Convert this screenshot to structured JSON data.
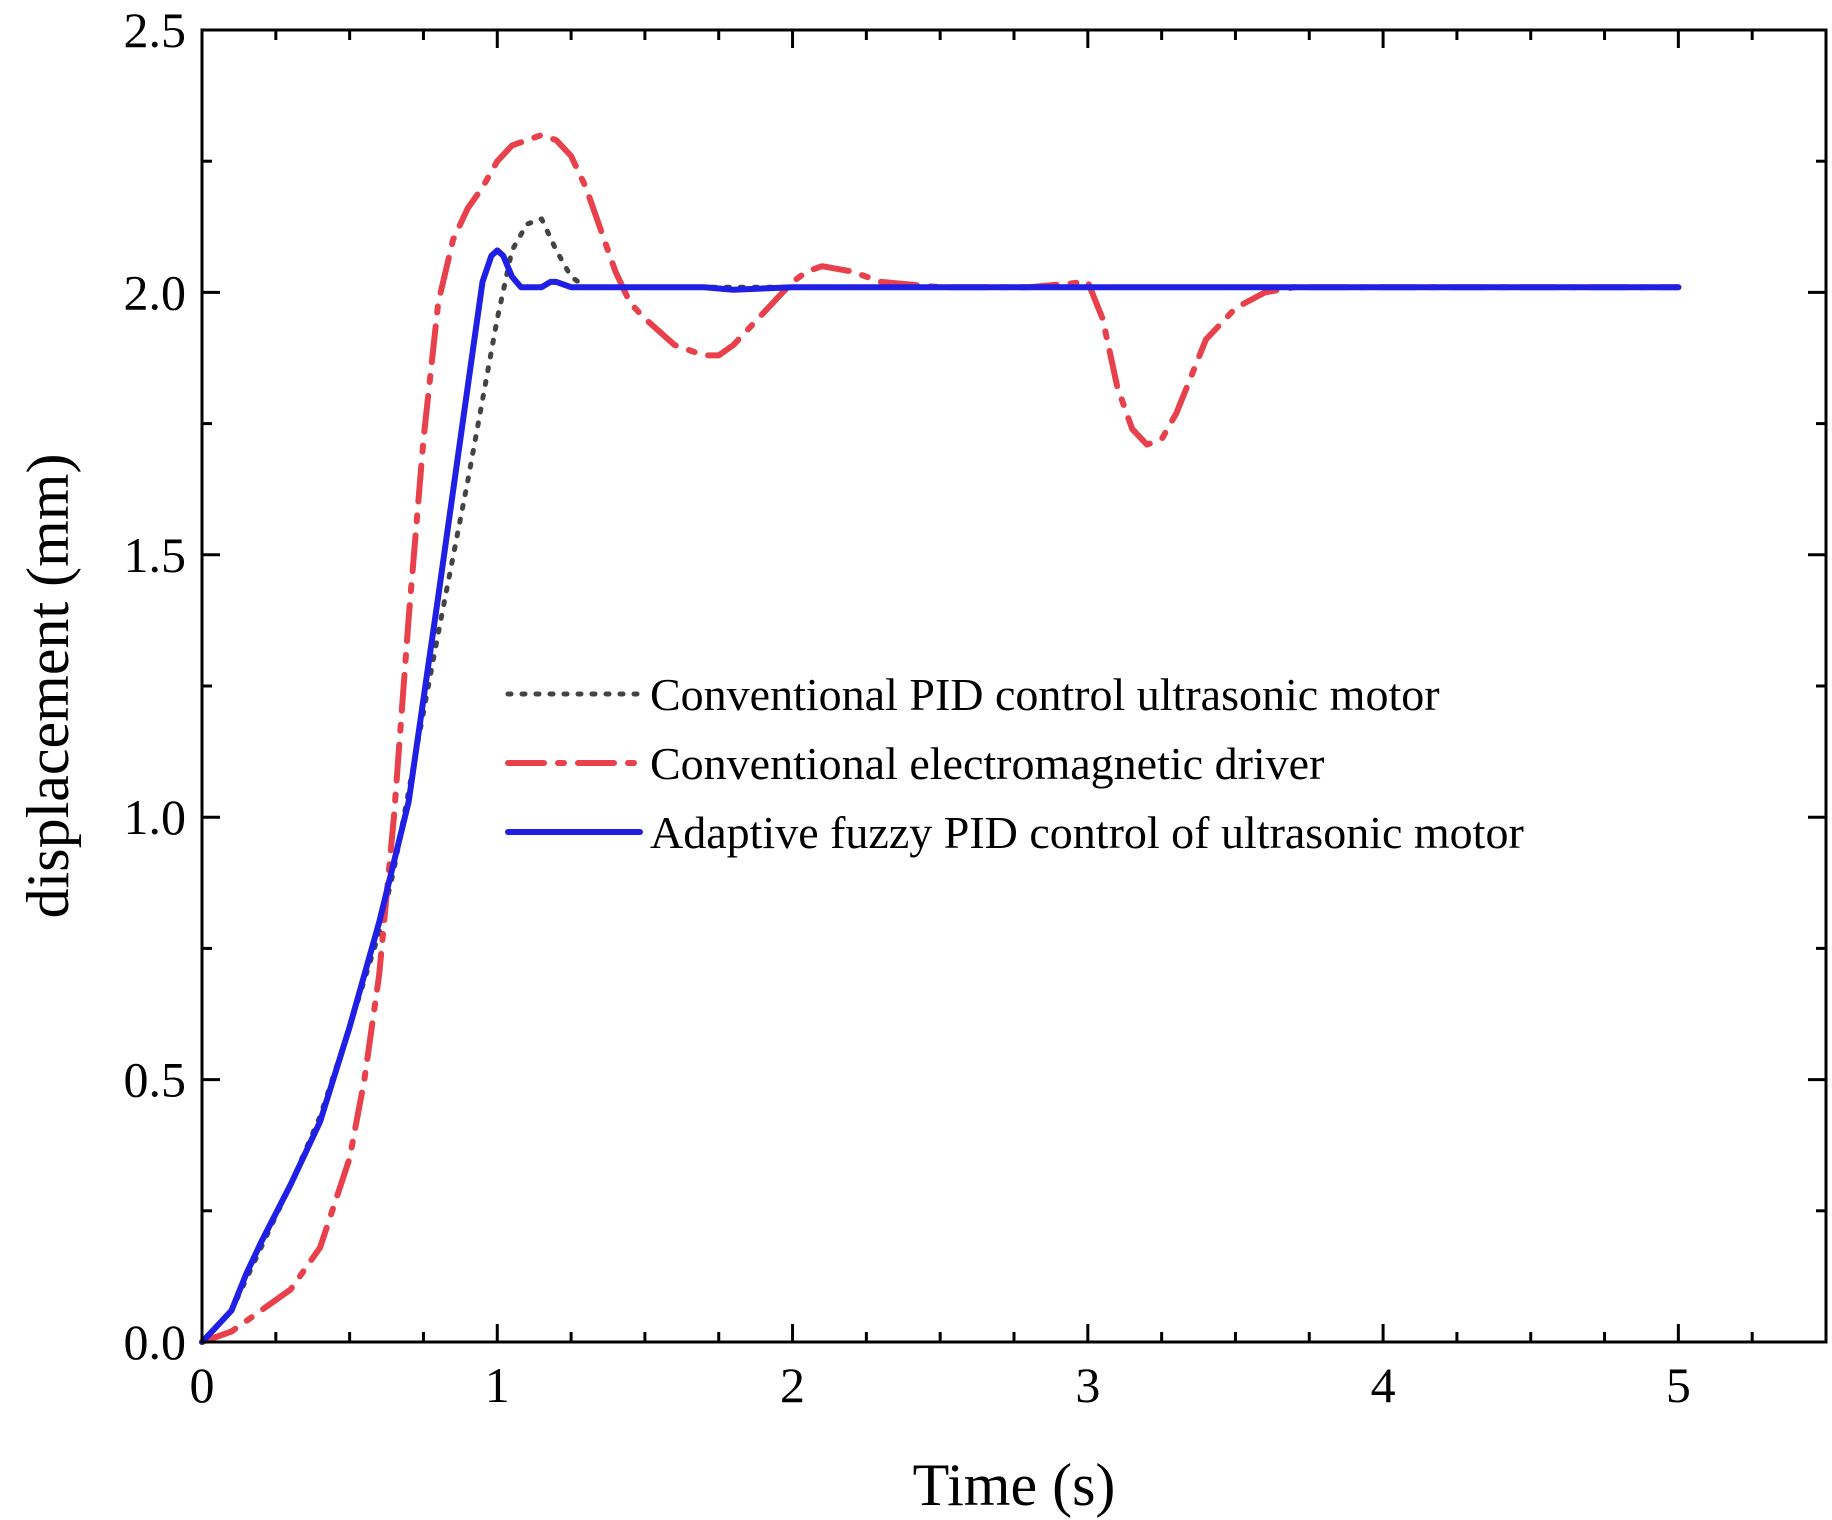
{
  "chart_data": {
    "type": "line",
    "xlabel": "Time (s)",
    "ylabel": "displacement (mm)",
    "xlim": [
      0,
      5.5
    ],
    "ylim": [
      0,
      2.5
    ],
    "xticks": [
      0,
      1,
      2,
      3,
      4,
      5
    ],
    "xtick_labels": [
      "0",
      "1",
      "2",
      "3",
      "4",
      "5"
    ],
    "yticks": [
      0,
      0.5,
      1.0,
      1.5,
      2.0,
      2.5
    ],
    "ytick_labels": [
      "0.0",
      "0.5",
      "1.0",
      "1.5",
      "2.0",
      "2.5"
    ],
    "grid": false,
    "legend_position": "center-right",
    "series": [
      {
        "name": "Conventional PID control ultrasonic motor",
        "color": "#444444",
        "style": "dotted",
        "x": [
          0,
          0.1,
          0.2,
          0.3,
          0.4,
          0.5,
          0.6,
          0.65,
          0.7,
          0.8,
          0.9,
          1.0,
          1.05,
          1.1,
          1.15,
          1.2,
          1.25,
          1.3,
          1.4,
          1.6,
          1.8,
          2.0,
          2.5,
          3.0,
          4.0,
          5.0
        ],
        "y": [
          0,
          0.06,
          0.18,
          0.3,
          0.43,
          0.6,
          0.78,
          0.9,
          1.05,
          1.35,
          1.64,
          1.95,
          2.08,
          2.13,
          2.14,
          2.08,
          2.03,
          2.01,
          2.01,
          2.01,
          2.01,
          2.01,
          2.01,
          2.01,
          2.01,
          2.01
        ]
      },
      {
        "name": "Conventional electromagnetic driver",
        "color": "#e8414b",
        "style": "dash-dot",
        "x": [
          0,
          0.1,
          0.2,
          0.3,
          0.4,
          0.5,
          0.55,
          0.6,
          0.65,
          0.7,
          0.75,
          0.8,
          0.85,
          0.9,
          0.95,
          1.0,
          1.05,
          1.1,
          1.15,
          1.2,
          1.25,
          1.3,
          1.35,
          1.4,
          1.45,
          1.5,
          1.6,
          1.7,
          1.75,
          1.8,
          1.9,
          2.0,
          2.05,
          2.1,
          2.2,
          2.3,
          2.5,
          2.8,
          3.0,
          3.05,
          3.1,
          3.15,
          3.2,
          3.25,
          3.3,
          3.35,
          3.4,
          3.5,
          3.6,
          3.7,
          3.8,
          4.0,
          5.0
        ],
        "y": [
          0,
          0.02,
          0.06,
          0.1,
          0.18,
          0.35,
          0.5,
          0.7,
          1.0,
          1.38,
          1.72,
          1.98,
          2.1,
          2.16,
          2.2,
          2.25,
          2.28,
          2.29,
          2.3,
          2.29,
          2.26,
          2.2,
          2.12,
          2.04,
          1.98,
          1.95,
          1.9,
          1.88,
          1.88,
          1.9,
          1.96,
          2.02,
          2.04,
          2.05,
          2.04,
          2.02,
          2.01,
          2.01,
          2.02,
          1.95,
          1.82,
          1.74,
          1.71,
          1.72,
          1.77,
          1.84,
          1.91,
          1.97,
          2.0,
          2.01,
          2.01,
          2.01,
          2.01
        ]
      },
      {
        "name": "Adaptive fuzzy PID control of ultrasonic motor",
        "color": "#1f1fe6",
        "style": "solid",
        "x": [
          0,
          0.05,
          0.1,
          0.15,
          0.2,
          0.3,
          0.4,
          0.5,
          0.6,
          0.7,
          0.8,
          0.9,
          0.95,
          0.98,
          1.0,
          1.02,
          1.05,
          1.08,
          1.1,
          1.15,
          1.18,
          1.2,
          1.25,
          1.3,
          1.5,
          1.7,
          1.8,
          2.0,
          3.0,
          4.0,
          5.0
        ],
        "y": [
          0,
          0.03,
          0.06,
          0.13,
          0.19,
          0.3,
          0.42,
          0.6,
          0.8,
          1.03,
          1.42,
          1.82,
          2.02,
          2.07,
          2.08,
          2.07,
          2.03,
          2.01,
          2.01,
          2.01,
          2.02,
          2.02,
          2.01,
          2.01,
          2.01,
          2.01,
          2.005,
          2.01,
          2.01,
          2.01,
          2.01
        ]
      }
    ]
  }
}
